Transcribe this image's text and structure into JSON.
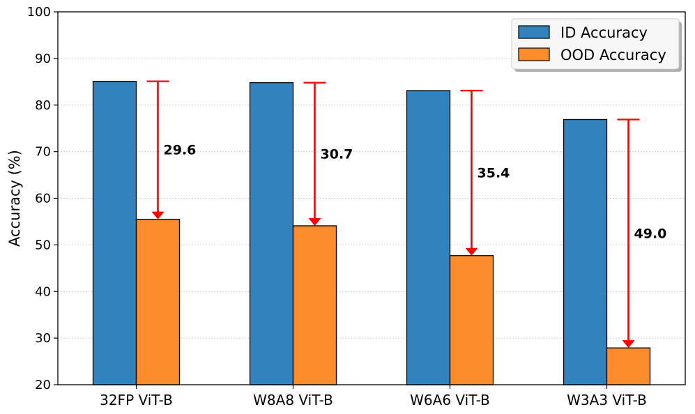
{
  "chart_data": {
    "type": "bar",
    "categories": [
      "32FP ViT-B",
      "W8A8 ViT-B",
      "W6A6 ViT-B",
      "W3A3 ViT-B"
    ],
    "series": [
      {
        "name": "ID Accuracy",
        "color": "#3182bd",
        "values": [
          85.1,
          84.8,
          83.1,
          76.9
        ]
      },
      {
        "name": "OOD Accuracy",
        "color": "#fd8d2c",
        "values": [
          55.5,
          54.1,
          47.7,
          27.9
        ]
      }
    ],
    "drops": [
      {
        "value": 29.6,
        "label": "29.6"
      },
      {
        "value": 30.7,
        "label": "30.7"
      },
      {
        "value": 35.4,
        "label": "35.4"
      },
      {
        "value": 49.0,
        "label": "49.0"
      }
    ],
    "drop_color": "#ff0000",
    "xlabel": "",
    "ylabel": "Accuracy (%)",
    "ylim": [
      20,
      100
    ],
    "yticks": [
      "20",
      "30",
      "40",
      "50",
      "60",
      "70",
      "80",
      "90",
      "100"
    ],
    "grid": true,
    "legend_position": "top-right"
  }
}
